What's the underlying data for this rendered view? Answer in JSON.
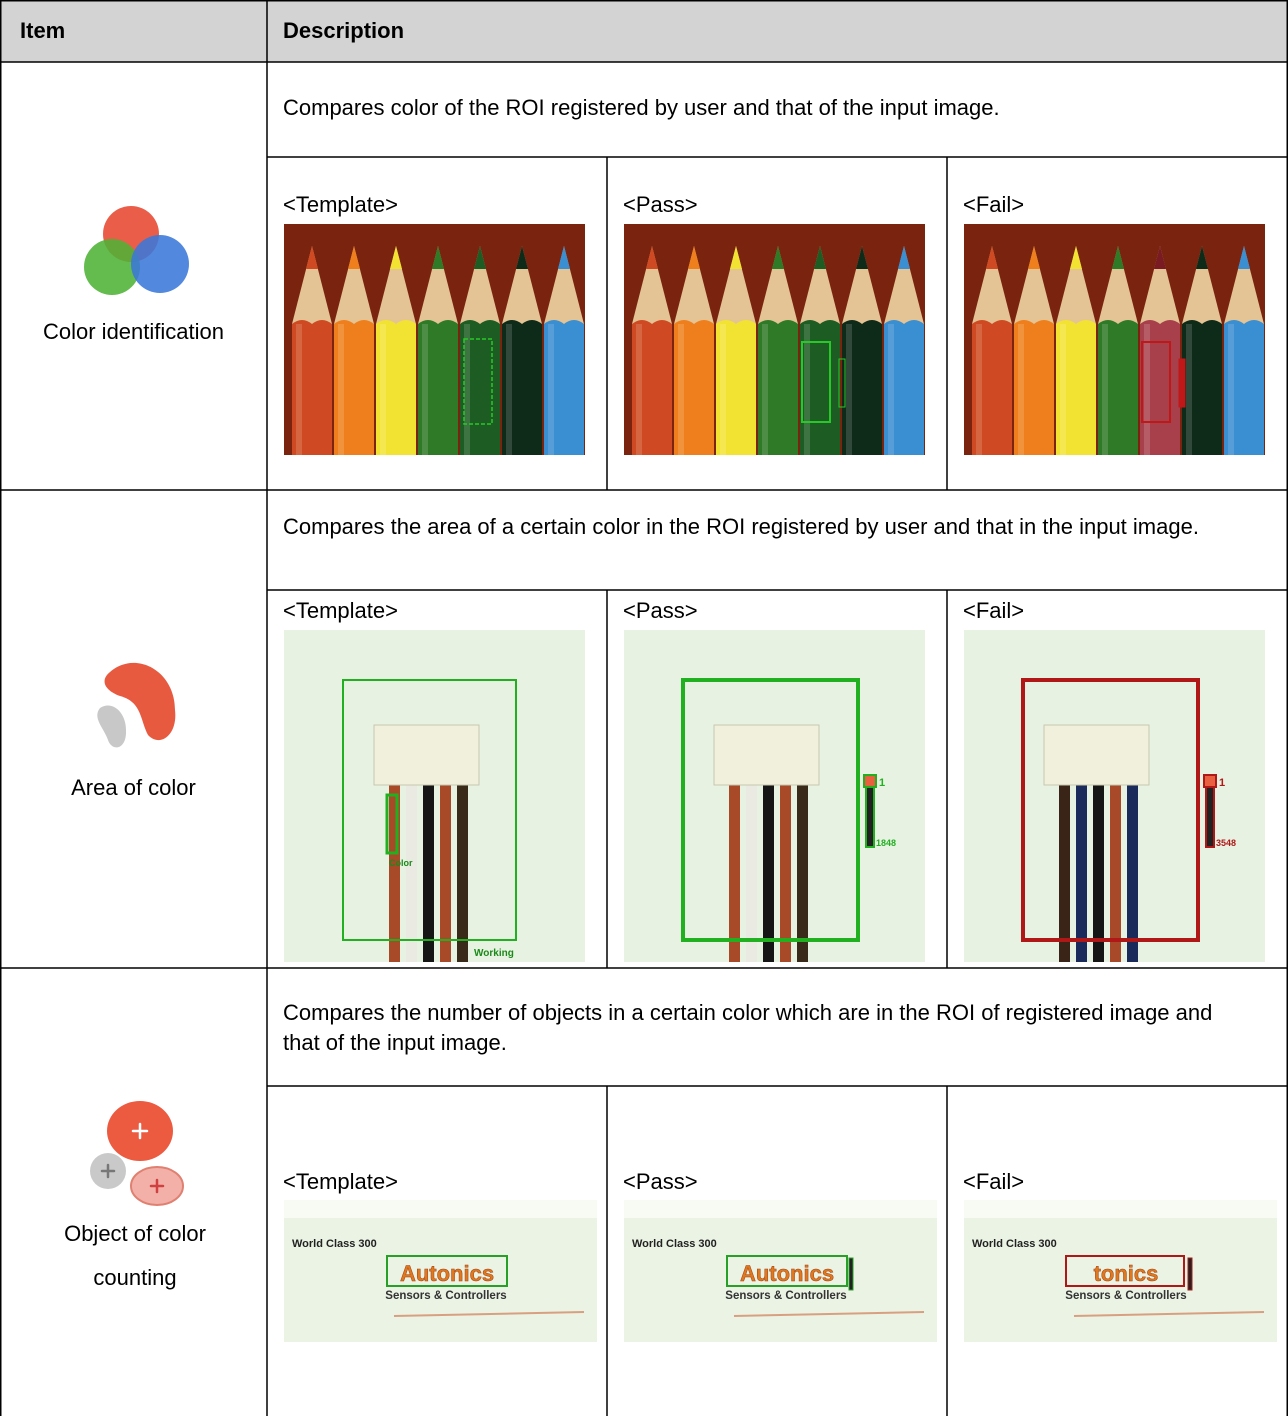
{
  "header": {
    "item": "Item",
    "description": "Description"
  },
  "rows": [
    {
      "item": "Color identification",
      "description": "Compares color of the ROI registered by user and that of the input image.",
      "images": [
        {
          "caption": "<Template>"
        },
        {
          "caption": "<Pass>"
        },
        {
          "caption": "<Fail>"
        }
      ]
    },
    {
      "item": "Area of color",
      "description": "Compares the area of a certain color in the ROI registered by user and that in the input image.",
      "images": [
        {
          "caption": "<Template>",
          "overlay_texts": [
            "Color",
            "Working"
          ]
        },
        {
          "caption": "<Pass>",
          "overlay_texts": [
            "1",
            "1848"
          ]
        },
        {
          "caption": "<Fail>",
          "overlay_texts": [
            "1",
            "3548"
          ]
        }
      ]
    },
    {
      "item": "Object of color counting",
      "description": "Compares the number of objects in a certain color which are in the ROI of registered image and that of the input image.",
      "images": [
        {
          "caption": "<Template>",
          "overlay_texts": [
            "World Class 300",
            "Autonics",
            "Sensors & Controllers"
          ]
        },
        {
          "caption": "<Pass>",
          "overlay_texts": [
            "World Class 300",
            "Autonics",
            "Sensors & Controllers"
          ]
        },
        {
          "caption": "<Fail>",
          "overlay_texts": [
            "World Class 300",
            "tonics",
            "Sensors & Controllers"
          ]
        }
      ]
    }
  ]
}
